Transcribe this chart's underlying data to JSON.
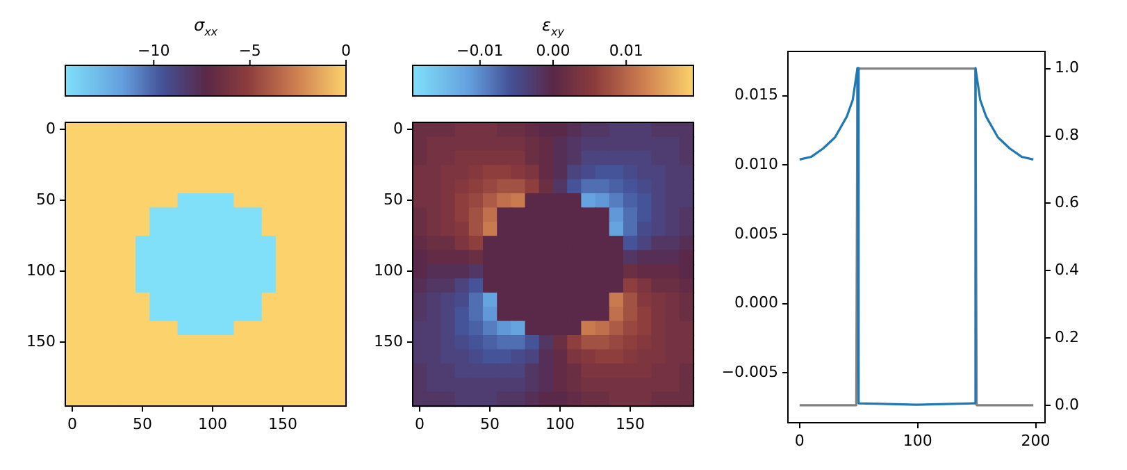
{
  "chart_data": [
    {
      "type": "heatmap",
      "clabel": "σ$_{xx}$",
      "clim": [
        -14.6,
        0
      ],
      "cticks": [
        {
          "value": -10,
          "label": "−10"
        },
        {
          "value": -5,
          "label": "−5"
        },
        {
          "value": 0,
          "label": "0"
        }
      ],
      "categories": [
        "0",
        null,
        null,
        null,
        null,
        "50",
        null,
        null,
        null,
        null,
        "100",
        null,
        null,
        null,
        null,
        "150",
        null,
        null,
        null,
        null
      ],
      "y_categories": [
        "0",
        null,
        null,
        null,
        null,
        "50",
        null,
        null,
        null,
        null,
        "100",
        null,
        null,
        null,
        null,
        "150",
        null,
        null,
        null,
        null
      ],
      "cells": [
        [
          0,
          0,
          0,
          0,
          0,
          0,
          0,
          0,
          0,
          0,
          0,
          0,
          0,
          0,
          0,
          0,
          0,
          0,
          0,
          0
        ],
        [
          0,
          0,
          0,
          0,
          0,
          0,
          0,
          0,
          0,
          0,
          0,
          0,
          0,
          0,
          0,
          0,
          0,
          0,
          0,
          0
        ],
        [
          0,
          0,
          0,
          0,
          0,
          0,
          0,
          0,
          0,
          0,
          0,
          0,
          0,
          0,
          0,
          0,
          0,
          0,
          0,
          0
        ],
        [
          0,
          0,
          0,
          0,
          0,
          0,
          0,
          0,
          0,
          0,
          0,
          0,
          0,
          0,
          0,
          0,
          0,
          0,
          0,
          0
        ],
        [
          0,
          0,
          0,
          0,
          0,
          0,
          0,
          0,
          0,
          0,
          0,
          0,
          0,
          0,
          0,
          0,
          0,
          0,
          0,
          0
        ],
        [
          0,
          0,
          0,
          0,
          0,
          0,
          0,
          0,
          -14.6,
          -14.6,
          -14.6,
          -14.6,
          0,
          0,
          0,
          0,
          0,
          0,
          0,
          0
        ],
        [
          0,
          0,
          0,
          0,
          0,
          0,
          -14.6,
          -14.6,
          -14.6,
          -14.6,
          -14.6,
          -14.6,
          -14.6,
          -14.6,
          0,
          0,
          0,
          0,
          0,
          0
        ],
        [
          0,
          0,
          0,
          0,
          0,
          0,
          -14.6,
          -14.6,
          -14.6,
          -14.6,
          -14.6,
          -14.6,
          -14.6,
          -14.6,
          0,
          0,
          0,
          0,
          0,
          0
        ],
        [
          0,
          0,
          0,
          0,
          0,
          -14.6,
          -14.6,
          -14.6,
          -14.6,
          -14.6,
          -14.6,
          -14.6,
          -14.6,
          -14.6,
          -14.6,
          0,
          0,
          0,
          0,
          0
        ],
        [
          0,
          0,
          0,
          0,
          0,
          -14.6,
          -14.6,
          -14.6,
          -14.6,
          -14.6,
          -14.6,
          -14.6,
          -14.6,
          -14.6,
          -14.6,
          0,
          0,
          0,
          0,
          0
        ],
        [
          0,
          0,
          0,
          0,
          0,
          -14.6,
          -14.6,
          -14.6,
          -14.6,
          -14.6,
          -14.6,
          -14.6,
          -14.6,
          -14.6,
          -14.6,
          0,
          0,
          0,
          0,
          0
        ],
        [
          0,
          0,
          0,
          0,
          0,
          -14.6,
          -14.6,
          -14.6,
          -14.6,
          -14.6,
          -14.6,
          -14.6,
          -14.6,
          -14.6,
          -14.6,
          0,
          0,
          0,
          0,
          0
        ],
        [
          0,
          0,
          0,
          0,
          0,
          0,
          -14.6,
          -14.6,
          -14.6,
          -14.6,
          -14.6,
          -14.6,
          -14.6,
          -14.6,
          0,
          0,
          0,
          0,
          0,
          0
        ],
        [
          0,
          0,
          0,
          0,
          0,
          0,
          -14.6,
          -14.6,
          -14.6,
          -14.6,
          -14.6,
          -14.6,
          -14.6,
          -14.6,
          0,
          0,
          0,
          0,
          0,
          0
        ],
        [
          0,
          0,
          0,
          0,
          0,
          0,
          0,
          0,
          -14.6,
          -14.6,
          -14.6,
          -14.6,
          0,
          0,
          0,
          0,
          0,
          0,
          0,
          0
        ],
        [
          0,
          0,
          0,
          0,
          0,
          0,
          0,
          0,
          0,
          0,
          0,
          0,
          0,
          0,
          0,
          0,
          0,
          0,
          0,
          0
        ],
        [
          0,
          0,
          0,
          0,
          0,
          0,
          0,
          0,
          0,
          0,
          0,
          0,
          0,
          0,
          0,
          0,
          0,
          0,
          0,
          0
        ],
        [
          0,
          0,
          0,
          0,
          0,
          0,
          0,
          0,
          0,
          0,
          0,
          0,
          0,
          0,
          0,
          0,
          0,
          0,
          0,
          0
        ],
        [
          0,
          0,
          0,
          0,
          0,
          0,
          0,
          0,
          0,
          0,
          0,
          0,
          0,
          0,
          0,
          0,
          0,
          0,
          0,
          0
        ],
        [
          0,
          0,
          0,
          0,
          0,
          0,
          0,
          0,
          0,
          0,
          0,
          0,
          0,
          0,
          0,
          0,
          0,
          0,
          0,
          0
        ]
      ]
    },
    {
      "type": "heatmap",
      "clabel": "ε$_{xy}$",
      "clim": [
        -0.0192,
        0.0192
      ],
      "cticks": [
        {
          "value": -0.01,
          "label": "−0.01"
        },
        {
          "value": 0,
          "label": "0.00"
        },
        {
          "value": 0.01,
          "label": "0.01"
        }
      ],
      "categories": [
        "0",
        null,
        null,
        null,
        null,
        "50",
        null,
        null,
        null,
        null,
        "100",
        null,
        null,
        null,
        null,
        "150",
        null,
        null,
        null,
        null
      ],
      "y_categories": [
        "0",
        null,
        null,
        null,
        null,
        "50",
        null,
        null,
        null,
        null,
        "100",
        null,
        null,
        null,
        null,
        "150",
        null,
        null,
        null,
        null
      ],
      "cells": [
        [
          0.002,
          0.002,
          0.002,
          0.003,
          0.003,
          0.003,
          0.002,
          0.002,
          0.001,
          0,
          0,
          -0.001,
          -0.002,
          -0.002,
          -0.003,
          -0.003,
          -0.003,
          -0.002,
          -0.002,
          -0.002
        ],
        [
          0.002,
          0.003,
          0.003,
          0.003,
          0.003,
          0.003,
          0.003,
          0.003,
          0.002,
          0.001,
          -0.001,
          -0.002,
          -0.003,
          -0.003,
          -0.003,
          -0.003,
          -0.003,
          -0.003,
          -0.003,
          -0.002
        ],
        [
          0.002,
          0.003,
          0.003,
          0.004,
          0.004,
          0.004,
          0.004,
          0.004,
          0.002,
          0.001,
          -0.001,
          -0.002,
          -0.004,
          -0.004,
          -0.004,
          -0.004,
          -0.004,
          -0.003,
          -0.003,
          -0.002
        ],
        [
          0.003,
          0.003,
          0.004,
          0.004,
          0.005,
          0.006,
          0.006,
          0.005,
          0.004,
          0.001,
          -0.001,
          -0.004,
          -0.005,
          -0.006,
          -0.006,
          -0.005,
          -0.004,
          -0.004,
          -0.003,
          -0.003
        ],
        [
          0.003,
          0.003,
          0.004,
          0.005,
          0.006,
          0.007,
          0.008,
          0.008,
          0.006,
          0.002,
          -0.002,
          -0.006,
          -0.008,
          -0.008,
          -0.007,
          -0.006,
          -0.005,
          -0.004,
          -0.003,
          -0.003
        ],
        [
          0.003,
          0.003,
          0.004,
          0.006,
          0.007,
          0.009,
          0.011,
          0.012,
          0,
          0,
          0,
          0,
          -0.012,
          -0.011,
          -0.009,
          -0.007,
          -0.006,
          -0.004,
          -0.003,
          -0.003
        ],
        [
          0.002,
          0.003,
          0.004,
          0.006,
          0.008,
          0.011,
          0,
          0,
          0,
          0,
          0,
          0,
          0,
          0,
          -0.011,
          -0.008,
          -0.006,
          -0.004,
          -0.003,
          -0.002
        ],
        [
          0.002,
          0.003,
          0.004,
          0.005,
          0.008,
          0.012,
          0,
          0,
          0,
          0,
          0,
          0,
          0,
          0,
          -0.012,
          -0.008,
          -0.005,
          -0.004,
          -0.003,
          -0.002
        ],
        [
          0.001,
          0.002,
          0.002,
          0.004,
          0.006,
          0,
          0,
          0,
          0,
          0,
          0,
          0,
          0,
          0,
          0,
          -0.006,
          -0.004,
          -0.002,
          -0.002,
          -0.001
        ],
        [
          0,
          0.001,
          0.001,
          0.001,
          0.002,
          0,
          0,
          0,
          0,
          0,
          0,
          0,
          0,
          0,
          0,
          -0.002,
          -0.001,
          -0.001,
          -0.001,
          0
        ],
        [
          0,
          -0.001,
          -0.001,
          -0.001,
          -0.002,
          0,
          0,
          0,
          0,
          0,
          0,
          0,
          0,
          0,
          0,
          0.002,
          0.001,
          0.001,
          0.001,
          0
        ],
        [
          -0.001,
          -0.002,
          -0.002,
          -0.004,
          -0.006,
          0,
          0,
          0,
          0,
          0,
          0,
          0,
          0,
          0,
          0,
          0.006,
          0.004,
          0.002,
          0.002,
          0.001
        ],
        [
          -0.002,
          -0.003,
          -0.004,
          -0.005,
          -0.008,
          -0.012,
          0,
          0,
          0,
          0,
          0,
          0,
          0,
          0,
          0.012,
          0.008,
          0.005,
          0.004,
          0.003,
          0.002
        ],
        [
          -0.002,
          -0.003,
          -0.004,
          -0.006,
          -0.008,
          -0.011,
          0,
          0,
          0,
          0,
          0,
          0,
          0,
          0,
          0.011,
          0.008,
          0.006,
          0.004,
          0.003,
          0.002
        ],
        [
          -0.003,
          -0.003,
          -0.004,
          -0.006,
          -0.007,
          -0.009,
          -0.011,
          -0.012,
          0,
          0,
          0,
          0,
          0.012,
          0.011,
          0.009,
          0.007,
          0.006,
          0.004,
          0.003,
          0.003
        ],
        [
          -0.003,
          -0.003,
          -0.004,
          -0.005,
          -0.006,
          -0.007,
          -0.008,
          -0.008,
          -0.006,
          -0.002,
          0.002,
          0.006,
          0.008,
          0.008,
          0.007,
          0.006,
          0.005,
          0.004,
          0.003,
          0.003
        ],
        [
          -0.003,
          -0.003,
          -0.004,
          -0.004,
          -0.005,
          -0.006,
          -0.006,
          -0.005,
          -0.004,
          -0.001,
          0.001,
          0.004,
          0.005,
          0.006,
          0.006,
          0.005,
          0.004,
          0.004,
          0.003,
          0.003
        ],
        [
          -0.002,
          -0.003,
          -0.003,
          -0.004,
          -0.004,
          -0.004,
          -0.004,
          -0.004,
          -0.002,
          -0.001,
          0.001,
          0.002,
          0.004,
          0.004,
          0.004,
          0.004,
          0.004,
          0.003,
          0.003,
          0.002
        ],
        [
          -0.002,
          -0.003,
          -0.003,
          -0.003,
          -0.003,
          -0.003,
          -0.003,
          -0.003,
          -0.002,
          -0.001,
          0.001,
          0.002,
          0.003,
          0.003,
          0.003,
          0.003,
          0.003,
          0.003,
          0.003,
          0.002
        ],
        [
          -0.002,
          -0.002,
          -0.002,
          -0.003,
          -0.003,
          -0.003,
          -0.002,
          -0.002,
          -0.001,
          0,
          0,
          0.001,
          0.002,
          0.002,
          0.003,
          0.003,
          0.003,
          0.002,
          0.002,
          0.002
        ]
      ]
    },
    {
      "type": "line",
      "xlim": [
        -9.9,
        207.9
      ],
      "xticks": [
        0,
        100,
        200
      ],
      "ylim": [
        -0.0086,
        0.0182
      ],
      "yticks": [
        {
          "value": -0.005,
          "label": "−0.005"
        },
        {
          "value": 0,
          "label": "0.000"
        },
        {
          "value": 0.005,
          "label": "0.005"
        },
        {
          "value": 0.01,
          "label": "0.010"
        },
        {
          "value": 0.015,
          "label": "0.015"
        }
      ],
      "y2lim": [
        -0.052,
        1.051
      ],
      "y2ticks": [
        {
          "value": 0,
          "label": "0.0"
        },
        {
          "value": 0.2,
          "label": "0.2"
        },
        {
          "value": 0.4,
          "label": "0.4"
        },
        {
          "value": 0.6,
          "label": "0.6"
        },
        {
          "value": 0.8,
          "label": "0.8"
        },
        {
          "value": 1,
          "label": "1.0"
        }
      ],
      "series": [
        {
          "color": "#1f77b4",
          "x": [
            0,
            10,
            20,
            30,
            40,
            45,
            49,
            50,
            99,
            148,
            149,
            153,
            158,
            168,
            178,
            188,
            198
          ],
          "values": [
            0.0104,
            0.0106,
            0.0112,
            0.012,
            0.0135,
            0.0147,
            0.017,
            -0.0072,
            -0.0073,
            -0.0072,
            0.017,
            0.0147,
            0.0135,
            0.012,
            0.0112,
            0.0106,
            0.0104
          ]
        },
        {
          "color": "#808080",
          "axis": "y2",
          "x": [
            0,
            48,
            49,
            149,
            150,
            198
          ],
          "values": [
            0,
            0,
            1,
            1,
            0,
            0
          ]
        }
      ]
    }
  ]
}
